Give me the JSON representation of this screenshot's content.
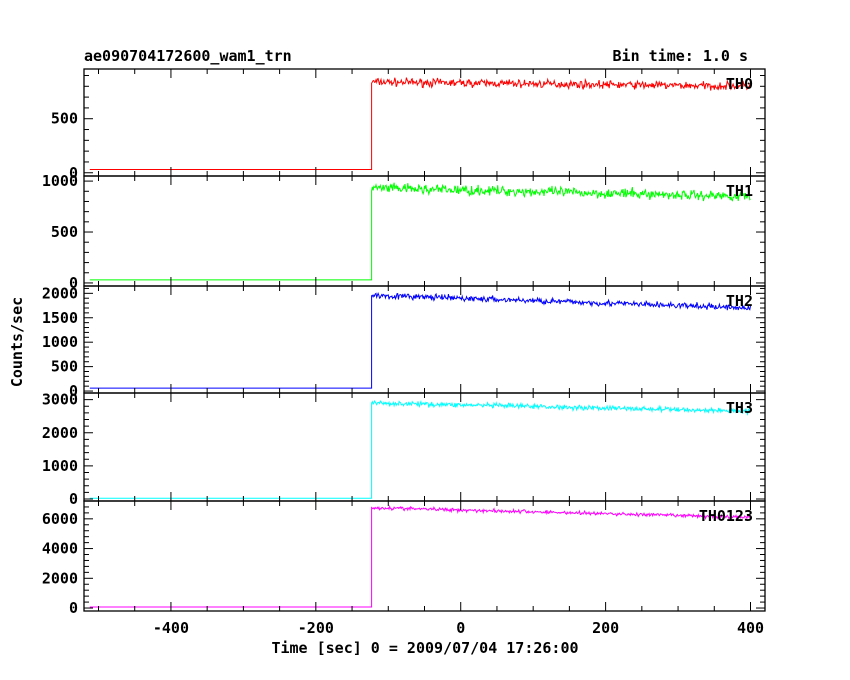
{
  "header": {
    "title": "ae090704172600_wam1_trn",
    "bin_time": "Bin time: 1.0 s"
  },
  "chart_data": {
    "type": "line",
    "xlabel": "Time [sec] 0 = 2009/07/04 17:26:00",
    "ylabel": "Counts/sec",
    "xlim": [
      -520,
      420
    ],
    "x_ticks": [
      -400,
      -200,
      0,
      200,
      400
    ],
    "onset_time": -123,
    "x_end": 400,
    "panels": [
      {
        "name": "TH0",
        "color": "#ff0000",
        "ylim": [
          -30,
          960
        ],
        "y_ticks": [
          0,
          500
        ],
        "pre_level": 30,
        "post_start": 840,
        "post_end": 800,
        "noise": 30
      },
      {
        "name": "TH1",
        "color": "#00ff00",
        "ylim": [
          -30,
          1050
        ],
        "y_ticks": [
          0,
          500,
          1000
        ],
        "pre_level": 30,
        "post_start": 930,
        "post_end": 850,
        "noise": 40
      },
      {
        "name": "TH2",
        "color": "#0000ff",
        "ylim": [
          -40,
          2150
        ],
        "y_ticks": [
          0,
          500,
          1000,
          1500,
          2000
        ],
        "pre_level": 60,
        "post_start": 1960,
        "post_end": 1700,
        "noise": 50
      },
      {
        "name": "TH3",
        "color": "#00ffff",
        "ylim": [
          -60,
          3200
        ],
        "y_ticks": [
          0,
          1000,
          2000,
          3000
        ],
        "pre_level": 20,
        "post_start": 2900,
        "post_end": 2650,
        "noise": 60
      },
      {
        "name": "TH0123",
        "color": "#ff00ff",
        "ylim": [
          -200,
          7200
        ],
        "y_ticks": [
          0,
          2000,
          4000,
          6000
        ],
        "pre_level": 70,
        "post_start": 6750,
        "post_end": 6100,
        "noise": 100
      }
    ]
  }
}
